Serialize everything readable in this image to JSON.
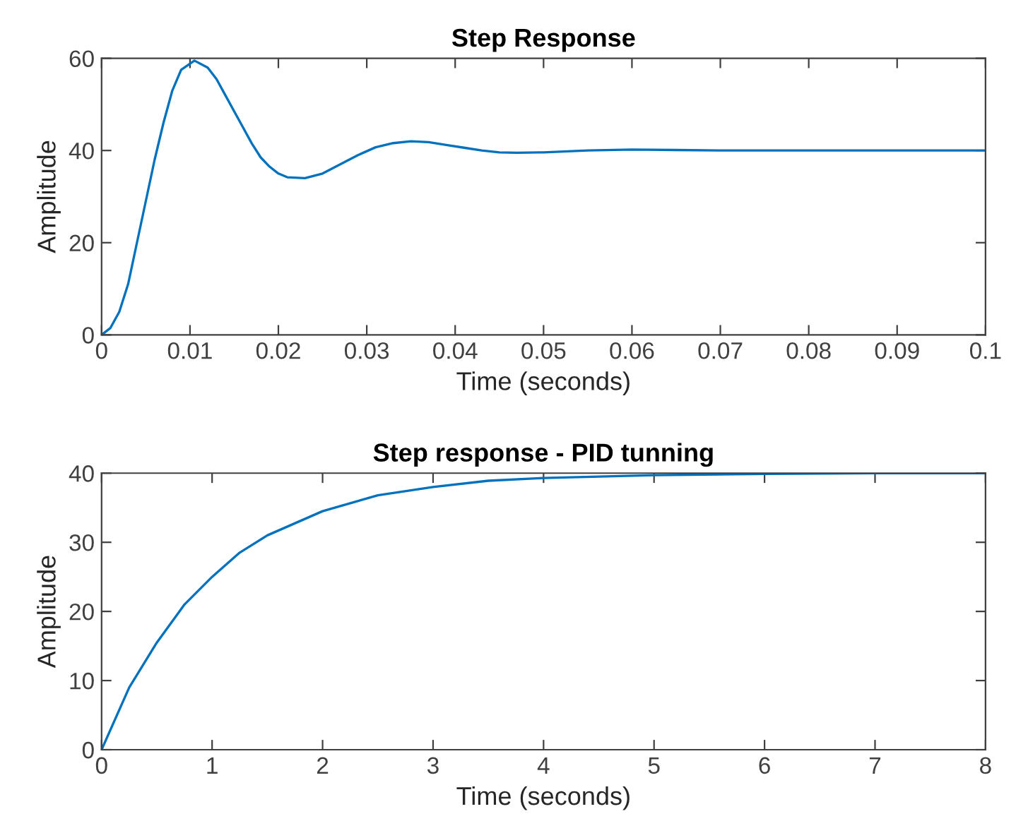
{
  "chart_data": [
    {
      "type": "line",
      "title": "Step Response",
      "xlabel": "Time (seconds)",
      "ylabel": "Amplitude",
      "xlim": [
        0,
        0.1
      ],
      "ylim": [
        0,
        60
      ],
      "xticks": [
        0,
        0.01,
        0.02,
        0.03,
        0.04,
        0.05,
        0.06,
        0.07,
        0.08,
        0.09,
        0.1
      ],
      "yticks": [
        0,
        20,
        40,
        60
      ],
      "grid": false,
      "legend": false,
      "series": [
        {
          "color": "#0072bd",
          "x": [
            0,
            0.001,
            0.002,
            0.003,
            0.004,
            0.005,
            0.006,
            0.007,
            0.008,
            0.009,
            0.0105,
            0.012,
            0.013,
            0.014,
            0.015,
            0.016,
            0.017,
            0.018,
            0.019,
            0.02,
            0.021,
            0.023,
            0.025,
            0.027,
            0.029,
            0.031,
            0.033,
            0.035,
            0.037,
            0.039,
            0.041,
            0.043,
            0.045,
            0.047,
            0.05,
            0.055,
            0.06,
            0.065,
            0.07,
            0.1
          ],
          "values": [
            0,
            1.5,
            5,
            11,
            20,
            29,
            38,
            46,
            53,
            57.5,
            59.5,
            58,
            55.5,
            52,
            48.5,
            45,
            41.5,
            38.5,
            36.5,
            35,
            34.2,
            34,
            35,
            37,
            39,
            40.7,
            41.6,
            42,
            41.8,
            41.2,
            40.6,
            40,
            39.6,
            39.5,
            39.6,
            40,
            40.2,
            40.1,
            40,
            40
          ]
        }
      ]
    },
    {
      "type": "line",
      "title": "Step response - PID tunning",
      "xlabel": "Time (seconds)",
      "ylabel": "Amplitude",
      "xlim": [
        0,
        8
      ],
      "ylim": [
        0,
        40
      ],
      "xticks": [
        0,
        1,
        2,
        3,
        4,
        5,
        6,
        7,
        8
      ],
      "yticks": [
        0,
        10,
        20,
        30,
        40
      ],
      "grid": false,
      "legend": false,
      "series": [
        {
          "color": "#0072bd",
          "x": [
            0,
            0.25,
            0.5,
            0.75,
            1,
            1.25,
            1.5,
            2,
            2.5,
            3,
            3.5,
            4,
            5,
            6,
            7,
            8
          ],
          "values": [
            0,
            9,
            15.5,
            21,
            25,
            28.5,
            31,
            34.5,
            36.8,
            38,
            38.9,
            39.3,
            39.7,
            39.9,
            40,
            40
          ]
        }
      ]
    }
  ]
}
